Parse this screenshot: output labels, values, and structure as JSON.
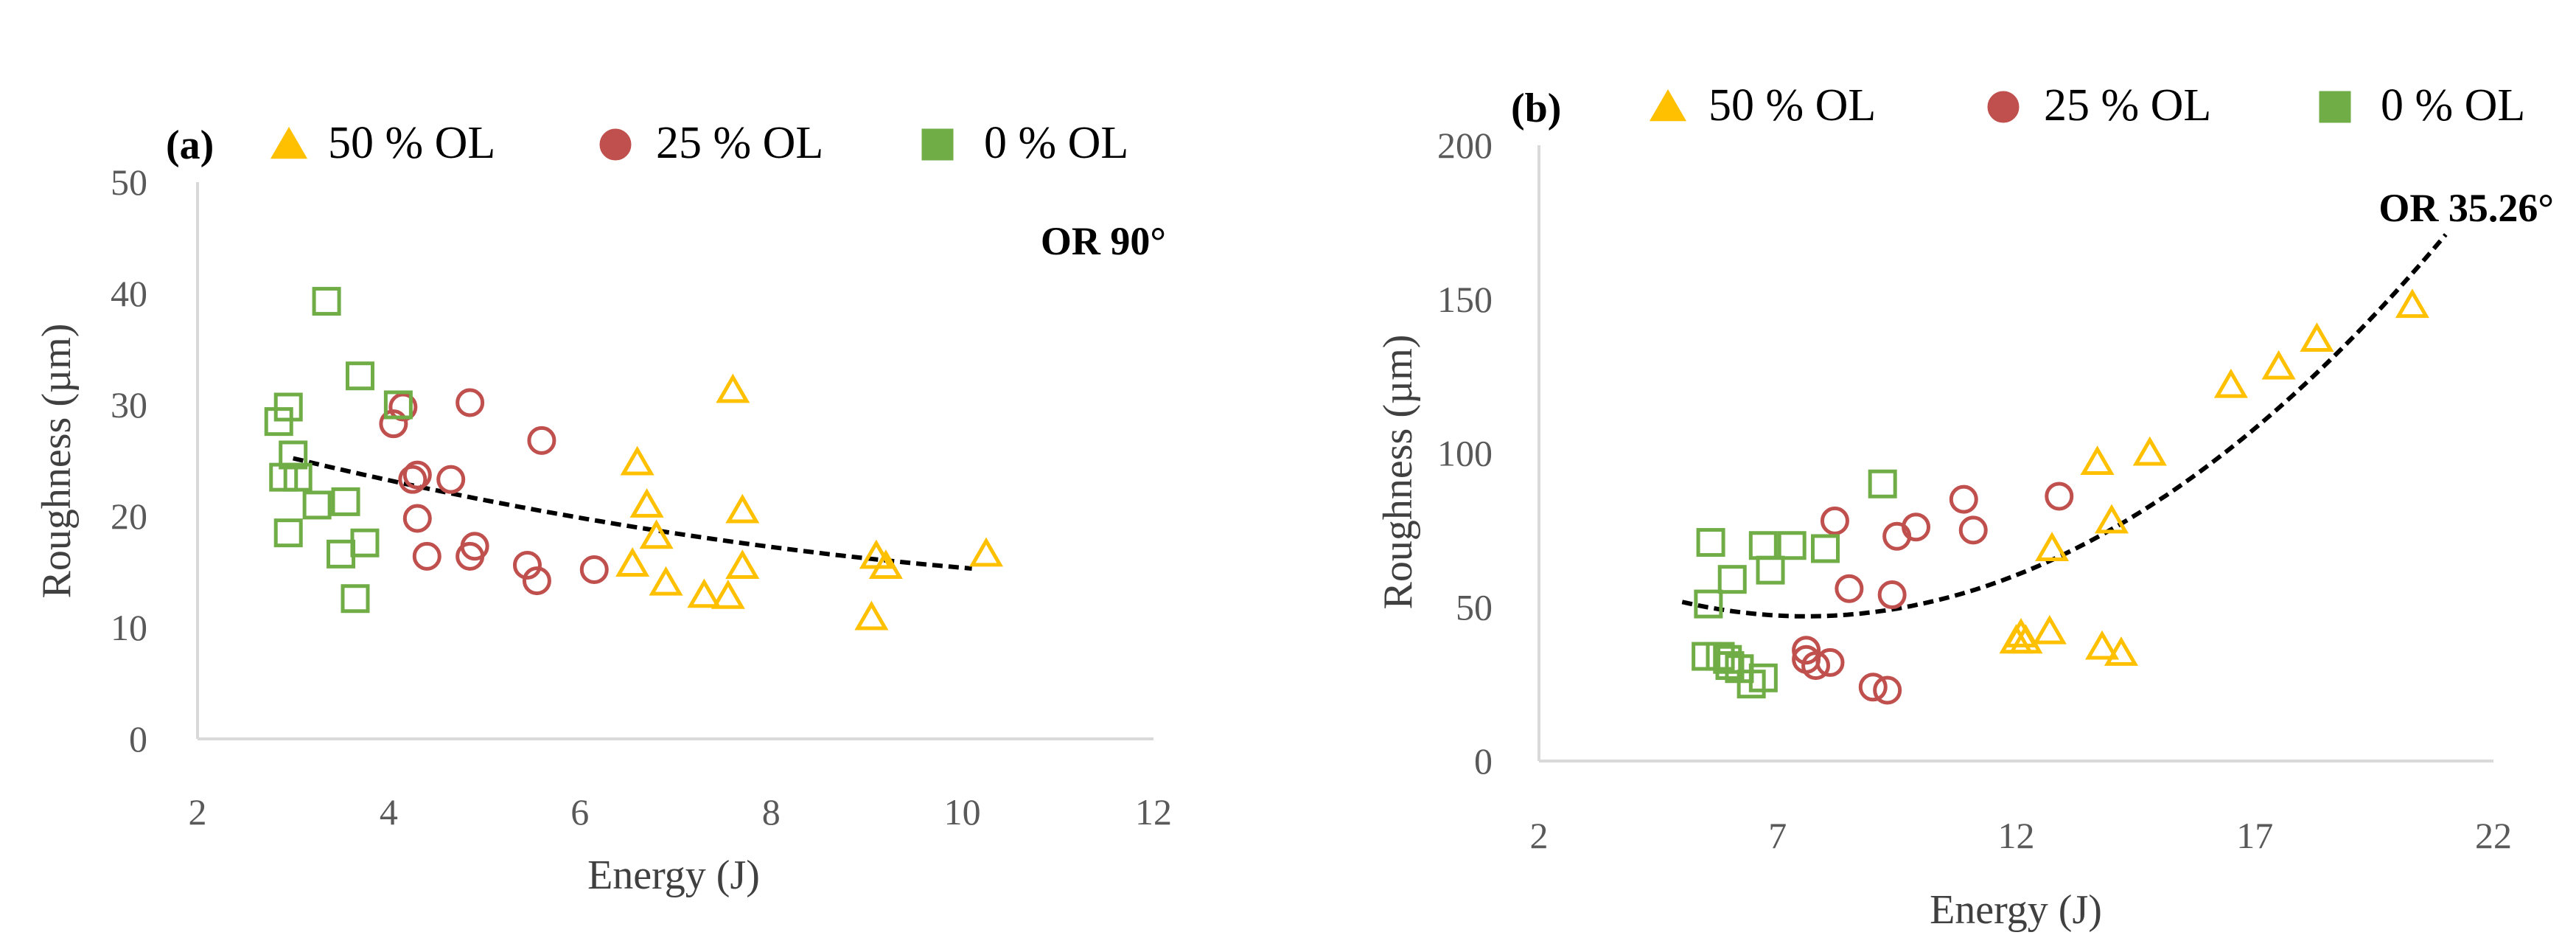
{
  "colors": {
    "s50": "#FFC000",
    "s25": "#C0504D",
    "s0": "#70AD47",
    "axis": "#D9D9D9",
    "trend": "#000000"
  },
  "chart_data": [
    {
      "panel": "(a)",
      "type": "scatter",
      "annotation": "OR 90°",
      "xlabel": "Energy (J)",
      "ylabel": "Roughness (µm)",
      "xlim": [
        2,
        12
      ],
      "ylim": [
        0,
        50
      ],
      "xticks": [
        "2",
        "4",
        "6",
        "8",
        "10",
        "12"
      ],
      "yticks": [
        "0",
        "10",
        "20",
        "30",
        "40",
        "50"
      ],
      "legend": [
        "50 % OL",
        "25 % OL",
        "0 % OL"
      ],
      "series": [
        {
          "name": "50 % OL",
          "marker": "triangle",
          "points": [
            [
              6.6,
              24.8
            ],
            [
              6.7,
              21.0
            ],
            [
              6.8,
              18.2
            ],
            [
              6.55,
              15.7
            ],
            [
              6.9,
              14.0
            ],
            [
              7.3,
              12.9
            ],
            [
              7.55,
              12.8
            ],
            [
              7.6,
              31.3
            ],
            [
              7.7,
              20.5
            ],
            [
              7.7,
              15.5
            ],
            [
              9.1,
              16.4
            ],
            [
              9.2,
              15.5
            ],
            [
              9.05,
              10.9
            ],
            [
              10.25,
              16.6
            ]
          ]
        },
        {
          "name": "25 % OL",
          "marker": "circle",
          "points": [
            [
              4.05,
              28.3
            ],
            [
              4.15,
              29.8
            ],
            [
              4.25,
              23.3
            ],
            [
              4.3,
              23.7
            ],
            [
              4.3,
              19.8
            ],
            [
              4.4,
              16.4
            ],
            [
              4.65,
              23.3
            ],
            [
              4.85,
              30.2
            ],
            [
              4.85,
              16.4
            ],
            [
              4.9,
              17.3
            ],
            [
              5.45,
              15.6
            ],
            [
              5.55,
              14.2
            ],
            [
              5.6,
              26.8
            ],
            [
              6.15,
              15.2
            ]
          ]
        },
        {
          "name": "0 % OL",
          "marker": "square",
          "points": [
            [
              2.85,
              28.5
            ],
            [
              2.9,
              23.5
            ],
            [
              2.95,
              18.5
            ],
            [
              2.95,
              29.8
            ],
            [
              3.0,
              25.5
            ],
            [
              3.05,
              23.5
            ],
            [
              3.25,
              21.0
            ],
            [
              3.35,
              39.3
            ],
            [
              3.5,
              16.6
            ],
            [
              3.55,
              21.3
            ],
            [
              3.65,
              12.6
            ],
            [
              3.7,
              32.6
            ],
            [
              3.75,
              17.6
            ],
            [
              4.1,
              30.0
            ]
          ]
        }
      ],
      "trendline": {
        "type": "polynomial",
        "x_range": [
          3.0,
          10.1
        ],
        "y_start": 25.2,
        "y_end": 15.3
      }
    },
    {
      "panel": "(b)",
      "type": "scatter",
      "annotation": "OR 35.26°",
      "xlabel": "Energy (J)",
      "ylabel": "Roughness (µm)",
      "xlim": [
        2,
        22
      ],
      "ylim": [
        0,
        200
      ],
      "xticks": [
        "2",
        "7",
        "12",
        "17",
        "22"
      ],
      "yticks": [
        "0",
        "50",
        "100",
        "150",
        "200"
      ],
      "legend": [
        "50 % OL",
        "25 % OL",
        "0 % OL"
      ],
      "series": [
        {
          "name": "50 % OL",
          "marker": "triangle",
          "points": [
            [
              12.0,
              39
            ],
            [
              12.1,
              41
            ],
            [
              12.2,
              39
            ],
            [
              12.7,
              42
            ],
            [
              12.75,
              69
            ],
            [
              13.7,
              97
            ],
            [
              13.8,
              37
            ],
            [
              14.0,
              78
            ],
            [
              14.2,
              35
            ],
            [
              14.8,
              100
            ],
            [
              16.5,
              122
            ],
            [
              17.5,
              128
            ],
            [
              18.3,
              137
            ],
            [
              20.3,
              148
            ]
          ]
        },
        {
          "name": "25 % OL",
          "marker": "circle",
          "points": [
            [
              7.6,
              36
            ],
            [
              7.6,
              33
            ],
            [
              7.8,
              31
            ],
            [
              8.1,
              32
            ],
            [
              8.2,
              78
            ],
            [
              8.5,
              56
            ],
            [
              9.0,
              24
            ],
            [
              9.3,
              23
            ],
            [
              9.4,
              54
            ],
            [
              9.5,
              73
            ],
            [
              9.9,
              76
            ],
            [
              10.9,
              85
            ],
            [
              11.1,
              75
            ],
            [
              12.9,
              86
            ]
          ]
        },
        {
          "name": "0 % OL",
          "marker": "square",
          "points": [
            [
              5.5,
              34
            ],
            [
              5.55,
              51
            ],
            [
              5.6,
              71
            ],
            [
              5.8,
              34
            ],
            [
              5.95,
              33
            ],
            [
              6.0,
              31
            ],
            [
              6.05,
              59
            ],
            [
              6.2,
              30
            ],
            [
              6.45,
              25
            ],
            [
              6.7,
              27
            ],
            [
              6.7,
              70
            ],
            [
              6.85,
              62
            ],
            [
              7.3,
              70
            ],
            [
              8.0,
              69
            ],
            [
              9.2,
              90
            ]
          ]
        }
      ],
      "trendline": {
        "type": "polynomial",
        "x_range": [
          5.0,
          21.0
        ],
        "y_start": 49,
        "y_min": 47,
        "y_min_at": 7.6,
        "y_end": 171
      }
    }
  ]
}
